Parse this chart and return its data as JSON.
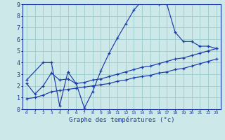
{
  "xlabel": "Graphe des températures (°c)",
  "bg_color": "#cce8e8",
  "grid_color": "#99cccc",
  "line_color": "#1a3aaa",
  "xlim": [
    -0.5,
    23.5
  ],
  "ylim": [
    0,
    9
  ],
  "xtick_vals": [
    0,
    1,
    2,
    3,
    4,
    5,
    6,
    7,
    8,
    9,
    10,
    11,
    12,
    13,
    14,
    15,
    16,
    17,
    18,
    19,
    20,
    21,
    22,
    23
  ],
  "xtick_labels": [
    "0",
    "1",
    "2",
    "3",
    "4",
    "5",
    "6",
    "7",
    "8",
    "9",
    "10",
    "11",
    "12",
    "13",
    "14",
    "15",
    "16",
    "17",
    "18",
    "19",
    "20",
    "21",
    "22",
    "23"
  ],
  "ytick_vals": [
    0,
    1,
    2,
    3,
    4,
    5,
    6,
    7,
    8,
    9
  ],
  "line1_x": [
    0,
    2,
    3,
    4,
    5,
    6,
    7,
    8,
    9,
    10,
    11,
    12,
    13,
    14,
    15,
    16,
    17,
    18,
    19,
    20,
    21,
    22,
    23
  ],
  "line1_y": [
    2.5,
    4.0,
    4.0,
    0.3,
    3.2,
    2.2,
    0.1,
    1.5,
    3.3,
    4.8,
    6.1,
    7.3,
    8.5,
    9.3,
    9.3,
    9.0,
    9.0,
    6.6,
    5.8,
    5.8,
    5.4,
    5.4,
    5.2
  ],
  "line2_x": [
    0,
    1,
    2,
    3,
    4,
    5,
    6,
    7,
    8,
    9,
    10,
    11,
    12,
    13,
    14,
    15,
    16,
    17,
    18,
    19,
    20,
    21,
    22,
    23
  ],
  "line2_y": [
    2.2,
    1.3,
    2.0,
    3.1,
    2.5,
    2.6,
    2.2,
    2.3,
    2.5,
    2.6,
    2.8,
    3.0,
    3.2,
    3.4,
    3.6,
    3.7,
    3.9,
    4.1,
    4.3,
    4.4,
    4.6,
    4.8,
    5.0,
    5.2
  ],
  "line3_x": [
    0,
    1,
    2,
    3,
    4,
    5,
    6,
    7,
    8,
    9,
    10,
    11,
    12,
    13,
    14,
    15,
    16,
    17,
    18,
    19,
    20,
    21,
    22,
    23
  ],
  "line3_y": [
    0.9,
    1.0,
    1.2,
    1.5,
    1.6,
    1.7,
    1.8,
    1.9,
    2.0,
    2.1,
    2.2,
    2.4,
    2.5,
    2.7,
    2.8,
    2.9,
    3.1,
    3.2,
    3.4,
    3.5,
    3.7,
    3.9,
    4.1,
    4.3
  ]
}
